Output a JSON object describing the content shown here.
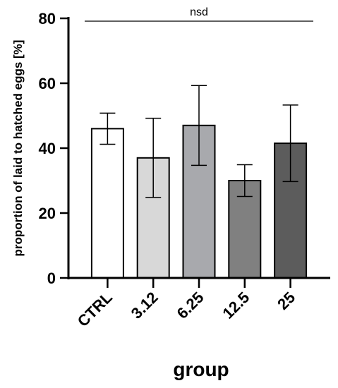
{
  "chart_data": {
    "type": "bar",
    "categories": [
      "CTRL",
      "3.12",
      "6.25",
      "12.5",
      "25"
    ],
    "values": [
      46,
      37,
      47,
      30,
      41.5
    ],
    "errors": [
      4.8,
      12.2,
      12.3,
      4.9,
      11.8
    ],
    "bar_colors": [
      "#ffffff",
      "#d8d8d8",
      "#a8a9ad",
      "#808080",
      "#5c5c5c"
    ],
    "xlabel": "group",
    "ylabel": "proportion of laid to hatched eggs  [%]",
    "ylim": [
      0,
      80
    ],
    "yticks": [
      0,
      20,
      40,
      60,
      80
    ],
    "annotation": "nsd",
    "grid": false
  }
}
